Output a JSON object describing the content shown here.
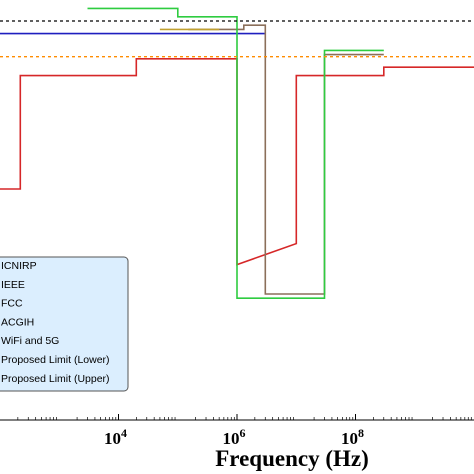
{
  "chart_data": {
    "type": "line",
    "xlabel": "Frequency (Hz)",
    "xscale": "log",
    "xlim": [
      100,
      10000000000
    ],
    "ylim": [
      0,
      100
    ],
    "x_ticks": [
      {
        "value": 10000,
        "base": "10",
        "exp": "4"
      },
      {
        "value": 1000000,
        "base": "10",
        "exp": "6"
      },
      {
        "value": 100000000,
        "base": "10",
        "exp": "8"
      }
    ],
    "grid": false,
    "legend_position": "lower-left",
    "series": [
      {
        "name": "ICNIRP",
        "color": "#d62728",
        "points": [
          [
            100,
            55
          ],
          [
            220,
            55
          ],
          [
            220,
            82
          ],
          [
            20000,
            82
          ],
          [
            20000,
            86
          ],
          [
            1000000,
            86
          ],
          [
            1000000,
            37
          ],
          [
            10000000,
            42
          ],
          [
            10000000,
            82
          ],
          [
            300000000,
            82
          ],
          [
            300000000,
            84
          ],
          [
            10000000000,
            84
          ]
        ]
      },
      {
        "name": "IEEE",
        "color": "#1f1fbf",
        "points": [
          [
            100,
            92
          ],
          [
            3000000,
            92
          ]
        ]
      },
      {
        "name": "FCC",
        "color": "#8b6f5a",
        "points": [
          [
            150000,
            93
          ],
          [
            1300000,
            93
          ],
          [
            1300000,
            94
          ],
          [
            3000000,
            94
          ],
          [
            3000000,
            30
          ],
          [
            30000000,
            30
          ],
          [
            30000000,
            87
          ],
          [
            300000000,
            87
          ]
        ]
      },
      {
        "name": "ACGIH",
        "color": "#2ecc40",
        "points": [
          [
            3000,
            98
          ],
          [
            100000,
            98
          ],
          [
            100000,
            96
          ],
          [
            1000000,
            96
          ],
          [
            1000000,
            29
          ],
          [
            30000000,
            29
          ],
          [
            30000000,
            88
          ],
          [
            300000000,
            88
          ]
        ]
      },
      {
        "name": "WiFi and 5G",
        "color": "#c0a030",
        "points": [
          [
            50000,
            93
          ],
          [
            500000,
            93
          ]
        ]
      },
      {
        "name": "Proposed Limit (Lower)",
        "color": "#ff8c00",
        "dashed": true,
        "points": [
          [
            100,
            86.5
          ],
          [
            10000000000,
            86.5
          ]
        ]
      },
      {
        "name": "Proposed Limit (Upper)",
        "color": "#000000",
        "dashed": true,
        "points": [
          [
            100,
            95
          ],
          [
            10000000000,
            95
          ]
        ]
      }
    ]
  }
}
